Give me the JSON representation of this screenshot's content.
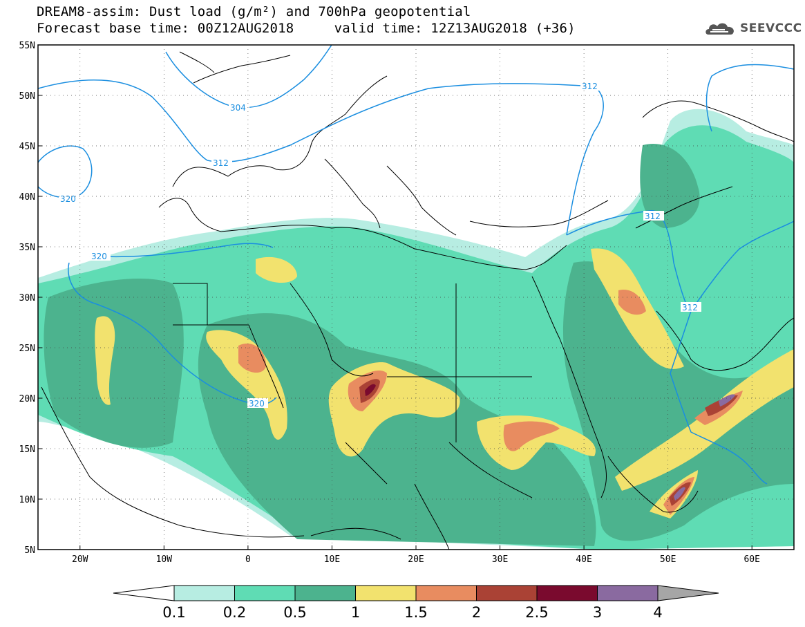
{
  "title": {
    "line1": "DREAM8-assim: Dust load (g/m²) and 700hPa geopotential",
    "line2": "Forecast base time: 00Z12AUG2018     valid time: 12Z13AUG2018 (+36)"
  },
  "logo": {
    "icon": "cloud-icon",
    "text": "SEEVCCC"
  },
  "map": {
    "lat_labels": [
      "55N",
      "50N",
      "45N",
      "40N",
      "35N",
      "30N",
      "25N",
      "20N",
      "15N",
      "10N",
      "5N"
    ],
    "lon_labels": [
      "20W",
      "10W",
      "0",
      "10E",
      "20E",
      "30E",
      "40E",
      "50E",
      "60E"
    ],
    "extent": {
      "lon_min": -25,
      "lon_max": 65,
      "lat_min": 5,
      "lat_max": 55
    },
    "contour_color": "#1a8ee0",
    "contour_labels": [
      "304",
      "312",
      "312",
      "312",
      "312",
      "320",
      "320",
      "320"
    ]
  },
  "colorbar": {
    "labels": [
      "0.1",
      "0.2",
      "0.5",
      "1",
      "1.5",
      "2",
      "2.5",
      "3",
      "4"
    ],
    "colors": [
      "#ffffff",
      "#b7ede2",
      "#5fdcb4",
      "#4cb38e",
      "#f2e26e",
      "#e88c60",
      "#aa4235",
      "#7a0a2e",
      "#8a6aa0",
      "#a6a6a6"
    ]
  }
}
